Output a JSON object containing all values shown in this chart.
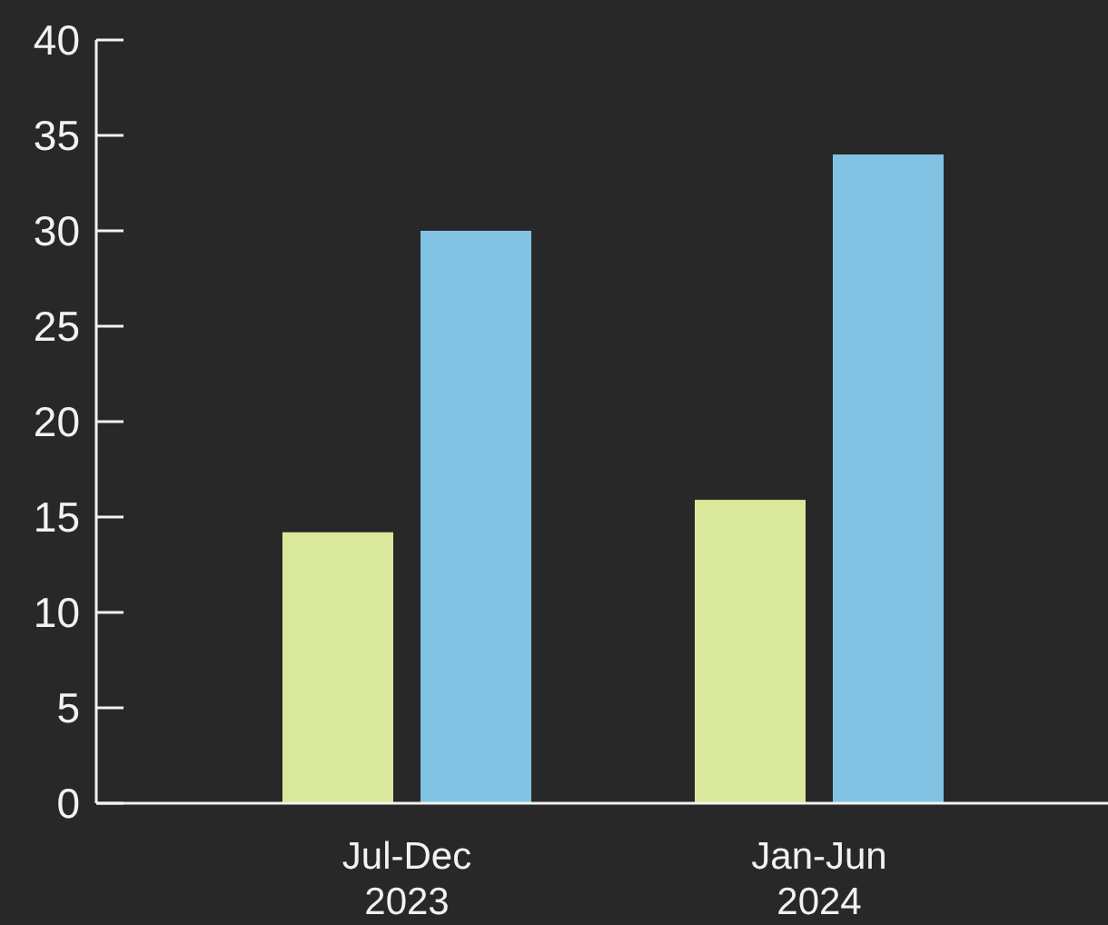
{
  "chart_data": {
    "type": "bar",
    "categories": [
      "Jul-Dec 2023",
      "Jan-Jun 2024"
    ],
    "series": [
      {
        "color": "#d9e89a",
        "values": [
          14.2,
          15.9
        ]
      },
      {
        "color": "#82c2e3",
        "values": [
          30,
          34
        ]
      }
    ],
    "ylim": [
      0,
      40
    ],
    "yticks": [
      0,
      5,
      10,
      15,
      20,
      25,
      30,
      35,
      40
    ]
  }
}
